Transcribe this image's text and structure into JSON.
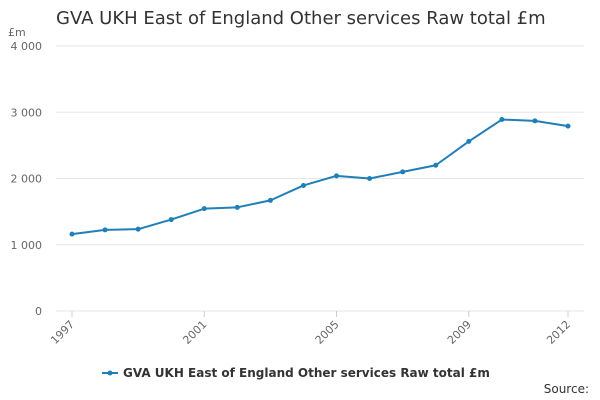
{
  "chart_data": {
    "type": "line",
    "title": "GVA UKH East of England Other services Raw total £m",
    "ylabel": "£m",
    "xlabel": "",
    "x": [
      1997,
      1998,
      1999,
      2000,
      2001,
      2002,
      2003,
      2004,
      2005,
      2006,
      2007,
      2008,
      2009,
      2010,
      2011,
      2012
    ],
    "x_tick_labels": [
      "1997",
      "2001",
      "2005",
      "2009",
      "2012"
    ],
    "y_tick_labels": [
      "0",
      "1 000",
      "2 000",
      "3 000",
      "4 000"
    ],
    "ylim": [
      0,
      4000
    ],
    "series": [
      {
        "name": "GVA UKH East of England Other services Raw total £m",
        "color": "#1f7fb8",
        "values": [
          1160,
          1225,
          1235,
          1380,
          1545,
          1565,
          1670,
          1895,
          2040,
          2000,
          2100,
          2200,
          2560,
          2890,
          2870,
          2790
        ]
      }
    ],
    "legend_position": "bottom",
    "grid": true,
    "source_label": "Source:"
  }
}
